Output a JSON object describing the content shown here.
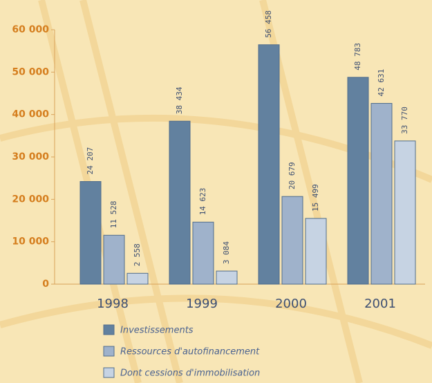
{
  "chart_data": {
    "type": "bar",
    "categories": [
      "1998",
      "1999",
      "2000",
      "2001"
    ],
    "series": [
      {
        "name": "Investissements",
        "color": "#62819f",
        "values": [
          24207,
          38434,
          56458,
          48783
        ],
        "value_labels": [
          "24 207",
          "38 434",
          "56 458",
          "48 783"
        ]
      },
      {
        "name": "Ressources d'autofinancement",
        "color": "#9fb2cb",
        "values": [
          11528,
          14623,
          20679,
          42631
        ],
        "value_labels": [
          "11 528",
          "14 623",
          "20 679",
          "42 631"
        ]
      },
      {
        "name": "Dont cessions d'immobilisation",
        "color": "#c6d3e3",
        "values": [
          2558,
          3084,
          15499,
          33770
        ],
        "value_labels": [
          "2 558",
          "3 084",
          "15 499",
          "33 770"
        ]
      }
    ],
    "ylim": [
      0,
      60000
    ],
    "yticks": [
      {
        "value": 0,
        "label": "0"
      },
      {
        "value": 10000,
        "label": "10 000"
      },
      {
        "value": 20000,
        "label": "20 000"
      },
      {
        "value": 30000,
        "label": "30 000"
      },
      {
        "value": 40000,
        "label": "40 000"
      },
      {
        "value": 50000,
        "label": "50 000"
      },
      {
        "value": 60000,
        "label": "60 000"
      }
    ],
    "legend": "bottom-left"
  }
}
